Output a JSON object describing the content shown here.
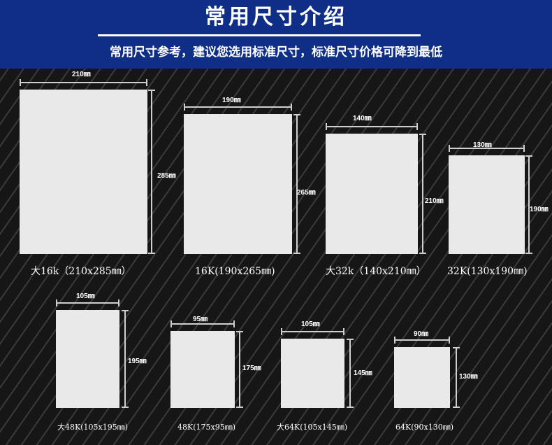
{
  "header": {
    "title": "常用尺寸介绍",
    "subtitle": "常用尺寸参考，建议您选用标准尺寸，标准尺寸价格可降到最低"
  },
  "colors": {
    "header": "#0f2f86",
    "sheet": "#e9e9e9",
    "line": "#cfcfcf",
    "text": "#ffffff"
  },
  "sizes": [
    {
      "width": "210㎜",
      "height": "285㎜",
      "caption": "大16k（210x285㎜）"
    },
    {
      "width": "190㎜",
      "height": "265㎜",
      "caption": "16K(190x265㎜)"
    },
    {
      "width": "140㎜",
      "height": "210㎜",
      "caption": "大32k（140x210㎜）"
    },
    {
      "width": "130㎜",
      "height": "190㎜",
      "caption": "32K(130x190㎜)"
    },
    {
      "width": "105㎜",
      "height": "195㎜",
      "caption": "大48K(105x195㎜)"
    },
    {
      "width": "95㎜",
      "height": "175㎜",
      "caption": "48K(175x95㎜)"
    },
    {
      "width": "105㎜",
      "height": "145㎜",
      "caption": "大64K(105x145㎜)"
    },
    {
      "width": "90㎜",
      "height": "130㎜",
      "caption": "64K(90x130㎜)"
    }
  ]
}
